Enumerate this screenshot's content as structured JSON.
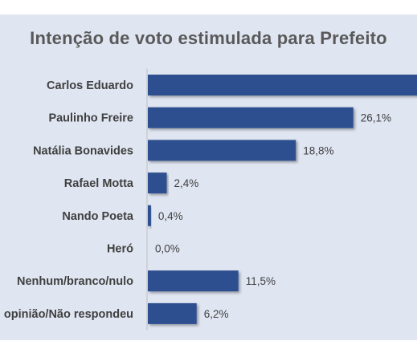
{
  "chart_data": {
    "type": "bar",
    "orientation": "horizontal",
    "title": "Intenção de voto estimulada para Prefeito",
    "categories": [
      "Carlos Eduardo",
      "Paulinho Freire",
      "Natália Bonavides",
      "Rafael Motta",
      "Nando Poeta",
      "Heró",
      "Nenhum/branco/nulo",
      "Não tem opinião/Não respondeu"
    ],
    "values": [
      34.6,
      26.1,
      18.8,
      2.4,
      0.4,
      0.0,
      11.5,
      6.2
    ],
    "value_labels": [
      "",
      "26,1%",
      "18,8%",
      "2,4%",
      "0,4%",
      "0,0%",
      "11,5%",
      "6,2%"
    ],
    "xlabel": "",
    "ylabel": "",
    "grid": false,
    "legend": "none",
    "colors": {
      "bar": "#2f4f8f",
      "background": "#dfe5f1",
      "title": "#595959",
      "text": "#404040"
    }
  }
}
